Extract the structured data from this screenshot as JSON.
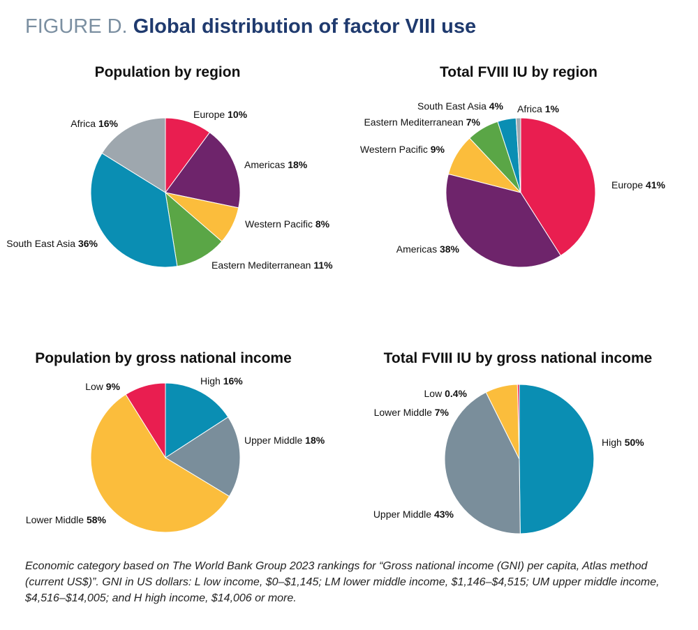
{
  "figure": {
    "label": "FIGURE D.",
    "title": "Global distribution of factor VIII use"
  },
  "colors": {
    "europe": "#e91e50",
    "americas": "#6e246b",
    "western_pacific": "#fbbd3c",
    "eastern_mediterranean": "#5aa646",
    "south_east_asia": "#0a8eb3",
    "africa": "#9ea7ae",
    "high": "#0a8eb3",
    "upper_middle": "#7a8e9b",
    "lower_middle": "#fbbd3c",
    "low": "#e91e50"
  },
  "chart_data": [
    {
      "type": "pie",
      "title": "Population by region",
      "slices": [
        {
          "name": "Europe",
          "value": 10,
          "label": "Europe",
          "pct": "10%",
          "color_key": "europe"
        },
        {
          "name": "Americas",
          "value": 18,
          "label": "Americas",
          "pct": "18%",
          "color_key": "americas"
        },
        {
          "name": "Western Pacific",
          "value": 8,
          "label": "Western Pacific",
          "pct": "8%",
          "color_key": "western_pacific"
        },
        {
          "name": "Eastern Mediterranean",
          "value": 11,
          "label": "Eastern Mediterranean",
          "pct": "11%",
          "color_key": "eastern_mediterranean"
        },
        {
          "name": "South East Asia",
          "value": 36,
          "label": "South East Asia",
          "pct": "36%",
          "color_key": "south_east_asia"
        },
        {
          "name": "Africa",
          "value": 16,
          "label": "Africa",
          "pct": "16%",
          "color_key": "africa"
        }
      ]
    },
    {
      "type": "pie",
      "title": "Total FVIII IU by region",
      "slices": [
        {
          "name": "Europe",
          "value": 41,
          "label": "Europe",
          "pct": "41%",
          "color_key": "europe"
        },
        {
          "name": "Americas",
          "value": 38,
          "label": "Americas",
          "pct": "38%",
          "color_key": "americas"
        },
        {
          "name": "Western Pacific",
          "value": 9,
          "label": "Western Pacific",
          "pct": "9%",
          "color_key": "western_pacific"
        },
        {
          "name": "Eastern Mediterranean",
          "value": 7,
          "label": "Eastern Mediterranean",
          "pct": "7%",
          "color_key": "eastern_mediterranean"
        },
        {
          "name": "South East Asia",
          "value": 4,
          "label": "South East Asia",
          "pct": "4%",
          "color_key": "south_east_asia"
        },
        {
          "name": "Africa",
          "value": 1,
          "label": "Africa",
          "pct": "1%",
          "color_key": "africa"
        }
      ]
    },
    {
      "type": "pie",
      "title": "Population by gross national income",
      "slices": [
        {
          "name": "High",
          "value": 16,
          "label": "High",
          "pct": "16%",
          "color_key": "high"
        },
        {
          "name": "Upper Middle",
          "value": 18,
          "label": "Upper Middle",
          "pct": "18%",
          "color_key": "upper_middle"
        },
        {
          "name": "Lower Middle",
          "value": 58,
          "label": "Lower Middle",
          "pct": "58%",
          "color_key": "lower_middle"
        },
        {
          "name": "Low",
          "value": 9,
          "label": "Low",
          "pct": "9%",
          "color_key": "low"
        }
      ]
    },
    {
      "type": "pie",
      "title": "Total FVIII IU by gross national income",
      "slices": [
        {
          "name": "High",
          "value": 50,
          "label": "High",
          "pct": "50%",
          "color_key": "high"
        },
        {
          "name": "Upper Middle",
          "value": 43,
          "label": "Upper Middle",
          "pct": "43%",
          "color_key": "upper_middle"
        },
        {
          "name": "Lower Middle",
          "value": 7,
          "label": "Lower Middle",
          "pct": "7%",
          "color_key": "lower_middle"
        },
        {
          "name": "Low",
          "value": 0.4,
          "label": "Low",
          "pct": "0.4%",
          "color_key": "low"
        }
      ]
    }
  ],
  "footnote": "Economic category based on The World Bank Group 2023 rankings for “Gross national income (GNI) per capita, Atlas method (current US$)”. GNI in US dollars: L low income, $0–$1,145; LM lower middle income, $1,146–$4,515; UM upper middle income, $4,516–$14,005; and H high income, $14,006 or more."
}
